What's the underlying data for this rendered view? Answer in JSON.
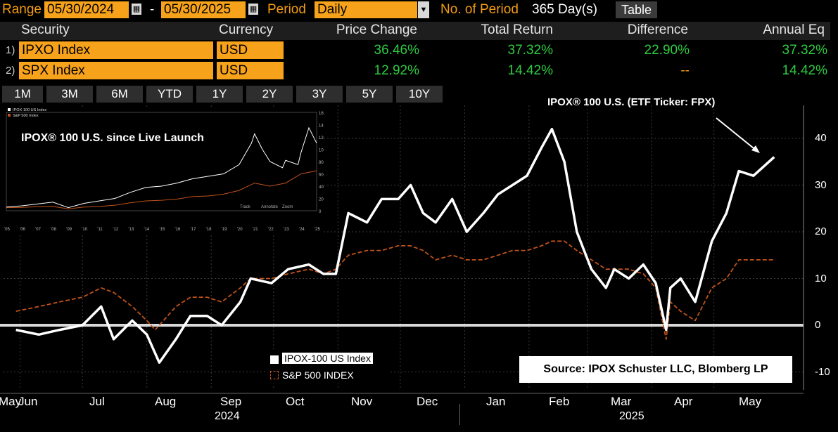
{
  "toolbar": {
    "range_label": "Range",
    "start_date": "05/30/2024",
    "separator": "-",
    "end_date": "05/30/2025",
    "period_label": "Period",
    "period_value": "Daily",
    "num_period_label": "No. of Period",
    "num_period_value": "365 Day(s)",
    "table_button": "Table"
  },
  "table": {
    "headers": [
      "Security",
      "Currency",
      "Price Change",
      "Total Return",
      "Difference",
      "Annual Eq"
    ],
    "rows": [
      {
        "num": "1)",
        "security": "IPXO Index",
        "currency": "USD",
        "price_change": "36.46%",
        "total_return": "37.32%",
        "difference": "22.90%",
        "annual_eq": "37.32%"
      },
      {
        "num": "2)",
        "security": "SPX Index",
        "currency": "USD",
        "price_change": "12.92%",
        "total_return": "14.42%",
        "difference": "--",
        "annual_eq": "14.42%"
      }
    ]
  },
  "periods": [
    "1M",
    "3M",
    "6M",
    "YTD",
    "1Y",
    "2Y",
    "3Y",
    "5Y",
    "10Y"
  ],
  "annotations": {
    "main_label": "IPOX® 100 U.S. (ETF Ticker: FPX)",
    "inset_label": "IPOX® 100 U.S. since Live Launch",
    "source": "Source: IPOX Schuster LLC, Blomberg LP"
  },
  "colors": {
    "orange": "#f7a21b",
    "green": "#2ecc40",
    "spx_line": "#c0521a",
    "ipox_line": "#ffffff"
  },
  "chart_data": {
    "type": "line",
    "x_tick_labels": [
      "May",
      "Jun",
      "Jul",
      "Aug",
      "Sep",
      "Oct",
      "Nov",
      "Dec",
      "Jan",
      "Feb",
      "Mar",
      "Apr",
      "May"
    ],
    "year_labels": [
      "2024",
      "2025"
    ],
    "ylim": [
      -13,
      46
    ],
    "y_ticks": [
      -10,
      0,
      10,
      20,
      30,
      40
    ],
    "series": [
      {
        "name": "IPOX-100 US Index",
        "color": "#ffffff",
        "x": [
          "2024-05-30",
          "2024-06-10",
          "2024-06-20",
          "2024-07-01",
          "2024-07-10",
          "2024-07-16",
          "2024-07-25",
          "2024-08-01",
          "2024-08-05",
          "2024-08-07",
          "2024-08-15",
          "2024-08-22",
          "2024-08-30",
          "2024-09-06",
          "2024-09-15",
          "2024-09-20",
          "2024-09-30",
          "2024-10-08",
          "2024-10-18",
          "2024-10-25",
          "2024-10-31",
          "2024-11-06",
          "2024-11-15",
          "2024-11-22",
          "2024-11-30",
          "2024-12-06",
          "2024-12-12",
          "2024-12-18",
          "2024-12-26",
          "2025-01-02",
          "2025-01-10",
          "2025-01-17",
          "2025-01-24",
          "2025-01-31",
          "2025-02-07",
          "2025-02-12",
          "2025-02-18",
          "2025-02-24",
          "2025-03-03",
          "2025-03-10",
          "2025-03-14",
          "2025-03-21",
          "2025-03-28",
          "2025-04-03",
          "2025-04-08",
          "2025-04-10",
          "2025-04-15",
          "2025-04-22",
          "2025-04-30",
          "2025-05-07",
          "2025-05-13",
          "2025-05-20",
          "2025-05-30"
        ],
        "y": [
          -1,
          -2,
          -1,
          0,
          4,
          -3,
          1,
          -2,
          -6,
          -8,
          -3,
          2,
          2,
          0,
          5,
          10,
          9,
          12,
          13,
          11,
          11,
          24,
          22,
          27,
          27,
          30,
          24,
          22,
          27,
          20,
          24,
          28,
          30,
          32,
          38,
          42,
          35,
          20,
          12,
          8,
          12,
          10,
          13,
          9,
          -1,
          8,
          10,
          5,
          18,
          24,
          33,
          32,
          36
        ]
      },
      {
        "name": "S&P 500 INDEX",
        "color": "#c0521a",
        "x": [
          "2024-05-30",
          "2024-06-10",
          "2024-06-20",
          "2024-07-01",
          "2024-07-10",
          "2024-07-16",
          "2024-07-25",
          "2024-08-01",
          "2024-08-05",
          "2024-08-07",
          "2024-08-15",
          "2024-08-22",
          "2024-08-30",
          "2024-09-06",
          "2024-09-15",
          "2024-09-20",
          "2024-09-30",
          "2024-10-08",
          "2024-10-18",
          "2024-10-25",
          "2024-10-31",
          "2024-11-06",
          "2024-11-15",
          "2024-11-22",
          "2024-11-30",
          "2024-12-06",
          "2024-12-12",
          "2024-12-18",
          "2024-12-26",
          "2025-01-02",
          "2025-01-10",
          "2025-01-17",
          "2025-01-24",
          "2025-01-31",
          "2025-02-07",
          "2025-02-12",
          "2025-02-18",
          "2025-02-24",
          "2025-03-03",
          "2025-03-10",
          "2025-03-14",
          "2025-03-21",
          "2025-03-28",
          "2025-04-03",
          "2025-04-08",
          "2025-04-10",
          "2025-04-15",
          "2025-04-22",
          "2025-04-30",
          "2025-05-07",
          "2025-05-13",
          "2025-05-20",
          "2025-05-30"
        ],
        "y": [
          3,
          4,
          5,
          6,
          8,
          7,
          4,
          1,
          -1,
          0,
          4,
          6,
          6,
          5,
          8,
          10,
          10,
          11,
          12,
          11,
          12,
          15,
          16,
          16,
          17,
          17,
          16,
          14,
          15,
          14,
          14,
          15,
          16,
          16,
          17,
          18,
          18,
          16,
          14,
          12,
          12,
          12,
          11,
          8,
          -3,
          5,
          3,
          1,
          8,
          10,
          14,
          14,
          14
        ]
      }
    ]
  },
  "inset_chart": {
    "type": "line",
    "legend": [
      "IPOX-100 US Index",
      "S&P 500 Index"
    ],
    "x_tick_labels": [
      "'05",
      "'06",
      "'07",
      "'08",
      "'09",
      "'10",
      "'11",
      "'12",
      "'13",
      "'14",
      "'15",
      "'16",
      "'17",
      "'18",
      "'19",
      "'20",
      "'21",
      "'22",
      "'23",
      "'24",
      "'25"
    ],
    "y_ticks": [
      0,
      200,
      400,
      600,
      800,
      1000,
      1200,
      1400,
      1600
    ],
    "ylim": [
      0,
      1600
    ],
    "controls": [
      "Track",
      "Annotate",
      "Zoom"
    ],
    "series": [
      {
        "name": "IPOX-100 US Index",
        "color": "#ffffff",
        "x": [
          2005,
          2006,
          2007,
          2008,
          2009,
          2010,
          2011,
          2012,
          2013,
          2014,
          2015,
          2016,
          2017,
          2018,
          2019,
          2020,
          2020.8,
          2021,
          2021.5,
          2022,
          2022.8,
          2023,
          2023.8,
          2024,
          2024.5,
          2025
        ],
        "y": [
          60,
          80,
          110,
          140,
          50,
          120,
          160,
          200,
          300,
          380,
          400,
          450,
          520,
          560,
          600,
          750,
          1100,
          1250,
          1000,
          800,
          700,
          820,
          750,
          950,
          1350,
          1100
        ]
      },
      {
        "name": "S&P 500 Index",
        "color": "#c0521a",
        "x": [
          2005,
          2006,
          2007,
          2008,
          2009,
          2010,
          2011,
          2012,
          2013,
          2014,
          2015,
          2016,
          2017,
          2018,
          2019,
          2020,
          2021,
          2022,
          2023,
          2024,
          2025
        ],
        "y": [
          50,
          55,
          65,
          70,
          30,
          60,
          70,
          90,
          130,
          160,
          170,
          190,
          230,
          240,
          270,
          330,
          450,
          400,
          450,
          600,
          650
        ]
      }
    ]
  }
}
